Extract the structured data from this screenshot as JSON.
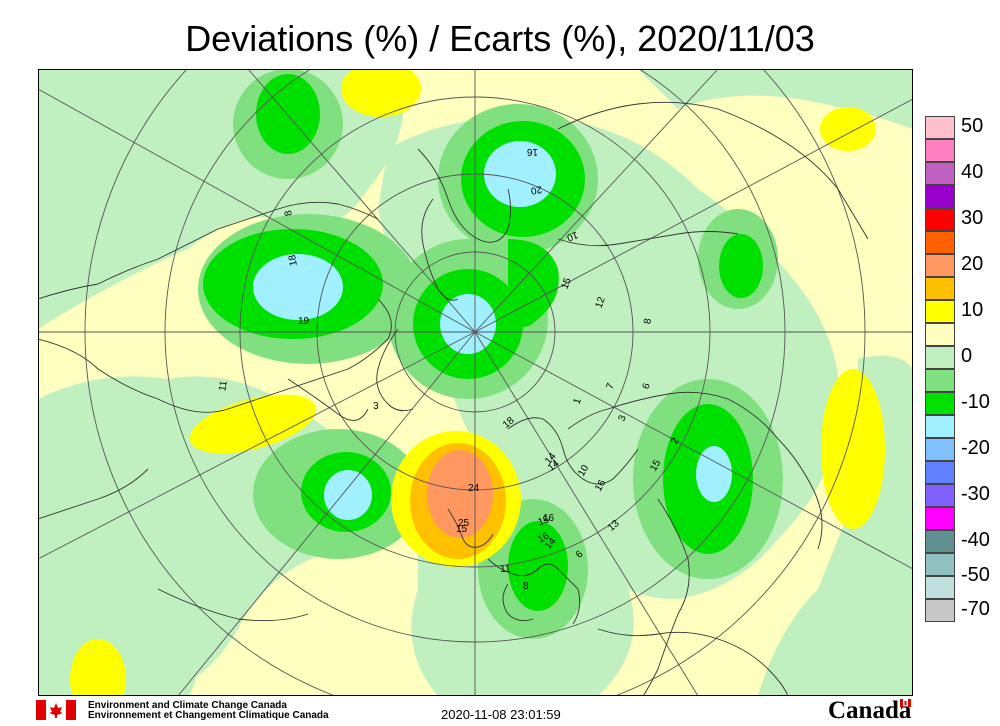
{
  "title": "Deviations (%) / Ecarts (%), 2020/11/03",
  "legend": {
    "labels": [
      "50",
      "40",
      "30",
      "20",
      "10",
      "0",
      "-10",
      "-20",
      "-30",
      "-40",
      "-50",
      "-70"
    ],
    "colors": [
      "#ffc0cb",
      "#ff80c0",
      "#c060c0",
      "#9900cc",
      "#ff0000",
      "#ff6000",
      "#ff9860",
      "#ffc000",
      "#ffff00",
      "#ffffc0",
      "#c0f0c0",
      "#80e080",
      "#00e000",
      "#a0f0ff",
      "#80c0ff",
      "#6080ff",
      "#8060ff",
      "#ff00ff",
      "#609090",
      "#90c0c0",
      "#c0e0e0",
      "#c8c8c8"
    ]
  },
  "map": {
    "background_color": "#ffffc0",
    "station_values": [
      "16",
      "20",
      "10",
      "15",
      "12",
      "8",
      "18",
      "7",
      "6",
      "3",
      "15",
      "2",
      "18",
      "14",
      "10",
      "16",
      "15",
      "13",
      "25",
      "24",
      "16",
      "16",
      "14",
      "6",
      "11",
      "8",
      "1",
      "14",
      "8",
      "19",
      "3",
      "11",
      "15"
    ]
  },
  "footer": {
    "org_en": "Environment and Climate Change Canada",
    "org_fr": "Environnement et Changement Climatique Canada",
    "timestamp": "2020-11-08 23:01:59",
    "wordmark": "Canada"
  }
}
